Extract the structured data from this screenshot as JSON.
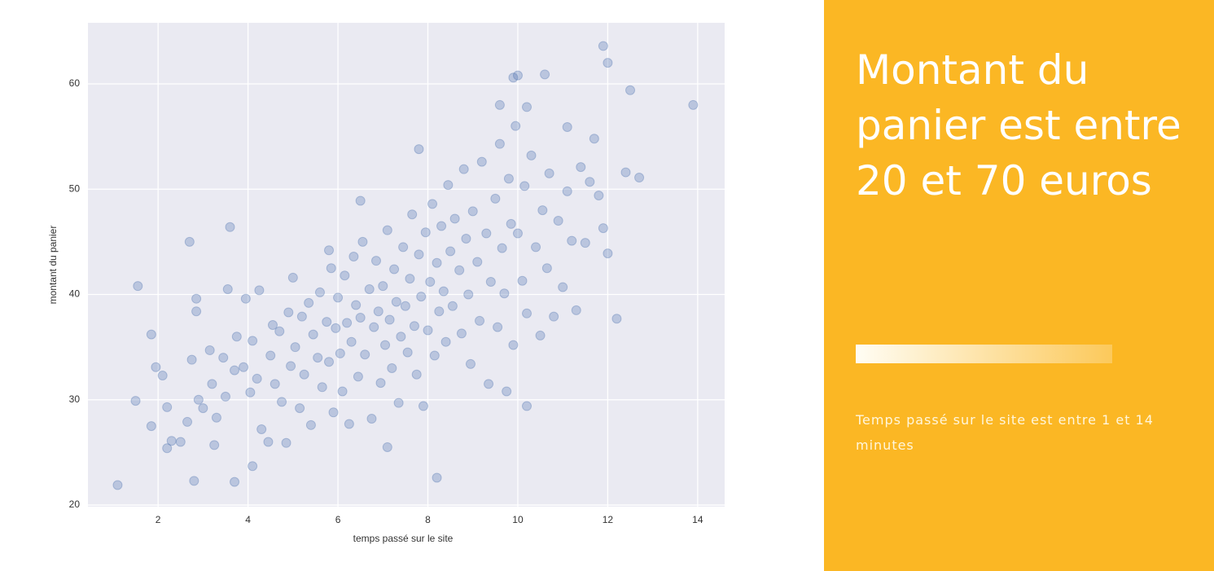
{
  "chart_data": {
    "type": "scatter",
    "xlabel": "temps passé sur le site",
    "ylabel": "montant du panier",
    "x": [
      1.1,
      1.55,
      1.5,
      1.85,
      1.85,
      2.7,
      3.6,
      2.8,
      3.7,
      4.1,
      7.1,
      8.2,
      13.9,
      11.9,
      12,
      12.5,
      12.7,
      12.4,
      12.2,
      11.3,
      10.6,
      10.0,
      9.9,
      10.2,
      6.5,
      5.8,
      7.8,
      11.1,
      11.7,
      9.6,
      10.2,
      2.2,
      2.3,
      2.5,
      2.2,
      2.1,
      1.95,
      2.65,
      2.75,
      2.85,
      2.85,
      2.9,
      3.0,
      3.15,
      3.25,
      3.2,
      3.3,
      3.45,
      3.5,
      3.55,
      3.7,
      3.75,
      3.9,
      3.95,
      4.05,
      4.1,
      4.2,
      4.25,
      4.3,
      4.45,
      4.5,
      4.55,
      4.6,
      4.7,
      4.75,
      4.85,
      4.9,
      4.95,
      5.0,
      5.05,
      5.15,
      5.2,
      5.25,
      5.35,
      5.4,
      5.45,
      5.55,
      5.6,
      5.65,
      5.75,
      5.8,
      5.85,
      5.9,
      5.95,
      6.0,
      6.05,
      6.1,
      6.15,
      6.2,
      6.25,
      6.3,
      6.35,
      6.4,
      6.45,
      6.5,
      6.55,
      6.6,
      6.7,
      6.75,
      6.8,
      6.85,
      6.9,
      6.95,
      7.0,
      7.05,
      7.1,
      7.15,
      7.2,
      7.25,
      7.3,
      7.35,
      7.4,
      7.45,
      7.5,
      7.55,
      7.6,
      7.65,
      7.7,
      7.75,
      7.8,
      7.85,
      7.9,
      7.95,
      8.0,
      8.05,
      8.1,
      8.15,
      8.2,
      8.25,
      8.3,
      8.35,
      8.4,
      8.45,
      8.5,
      8.55,
      8.6,
      8.7,
      8.75,
      8.8,
      8.85,
      8.9,
      8.95,
      9.0,
      9.1,
      9.15,
      9.2,
      9.3,
      9.35,
      9.4,
      9.5,
      9.55,
      9.6,
      9.65,
      9.7,
      9.75,
      9.8,
      9.85,
      9.9,
      9.95,
      10.0,
      10.1,
      10.15,
      10.2,
      10.3,
      10.4,
      10.5,
      10.55,
      10.65,
      10.7,
      10.8,
      10.9,
      11.0,
      11.1,
      11.2,
      11.4,
      11.5,
      11.6,
      11.8,
      11.9,
      12.0
    ],
    "y": [
      21.9,
      40.8,
      29.9,
      27.5,
      36.2,
      45,
      46.4,
      22.3,
      22.2,
      23.7,
      25.5,
      22.6,
      58,
      63.6,
      62,
      59.4,
      51.1,
      51.6,
      37.7,
      38.5,
      60.9,
      60.8,
      60.6,
      29.4,
      48.9,
      44.2,
      53.8,
      55.9,
      54.8,
      58,
      57.8,
      25.4,
      26.1,
      26.0,
      29.3,
      32.3,
      33.1,
      27.9,
      33.8,
      38.4,
      39.6,
      30.0,
      29.2,
      34.7,
      25.7,
      31.5,
      28.3,
      34.0,
      30.3,
      40.5,
      32.8,
      36.0,
      33.1,
      39.6,
      30.7,
      35.6,
      32.0,
      40.4,
      27.2,
      26.0,
      34.2,
      37.1,
      31.5,
      36.5,
      29.8,
      25.9,
      38.3,
      33.2,
      41.6,
      35.0,
      29.2,
      37.9,
      32.4,
      39.2,
      27.6,
      36.2,
      34.0,
      40.2,
      31.2,
      37.4,
      33.6,
      42.5,
      28.8,
      36.8,
      39.7,
      34.4,
      30.8,
      41.8,
      37.3,
      27.7,
      35.5,
      43.6,
      39.0,
      32.2,
      37.8,
      45.0,
      34.3,
      40.5,
      28.2,
      36.9,
      43.2,
      38.4,
      31.6,
      40.8,
      35.2,
      46.1,
      37.6,
      33.0,
      42.4,
      39.3,
      29.7,
      36.0,
      44.5,
      38.9,
      34.5,
      41.5,
      47.6,
      37.0,
      32.4,
      43.8,
      39.8,
      29.4,
      45.9,
      36.6,
      41.2,
      48.6,
      34.2,
      43.0,
      38.4,
      46.5,
      40.3,
      35.5,
      50.4,
      44.1,
      38.9,
      47.2,
      42.3,
      36.3,
      51.9,
      45.3,
      40.0,
      33.4,
      47.9,
      43.1,
      37.5,
      52.6,
      45.8,
      31.5,
      41.2,
      49.1,
      36.9,
      54.3,
      44.4,
      40.1,
      30.8,
      51.0,
      46.7,
      35.2,
      56.0,
      45.8,
      41.3,
      50.3,
      38.2,
      53.2,
      44.5,
      36.1,
      48.0,
      42.5,
      51.5,
      37.9,
      47.0,
      40.7,
      49.8,
      45.1,
      52.1,
      44.9,
      50.7,
      49.4,
      46.3,
      43.9
    ],
    "color": "#4c72b0",
    "xlim": [
      0.44,
      14.6
    ],
    "ylim": [
      19.85,
      65.8
    ],
    "xticks": [
      2,
      4,
      6,
      8,
      10,
      12,
      14
    ],
    "yticks": [
      20,
      30,
      40,
      50,
      60
    ],
    "grid": true
  },
  "panel": {
    "title": "Montant du panier est entre 20 et 70 euros",
    "text": "Temps passé sur le site est entre 1 et 14 minutes"
  }
}
